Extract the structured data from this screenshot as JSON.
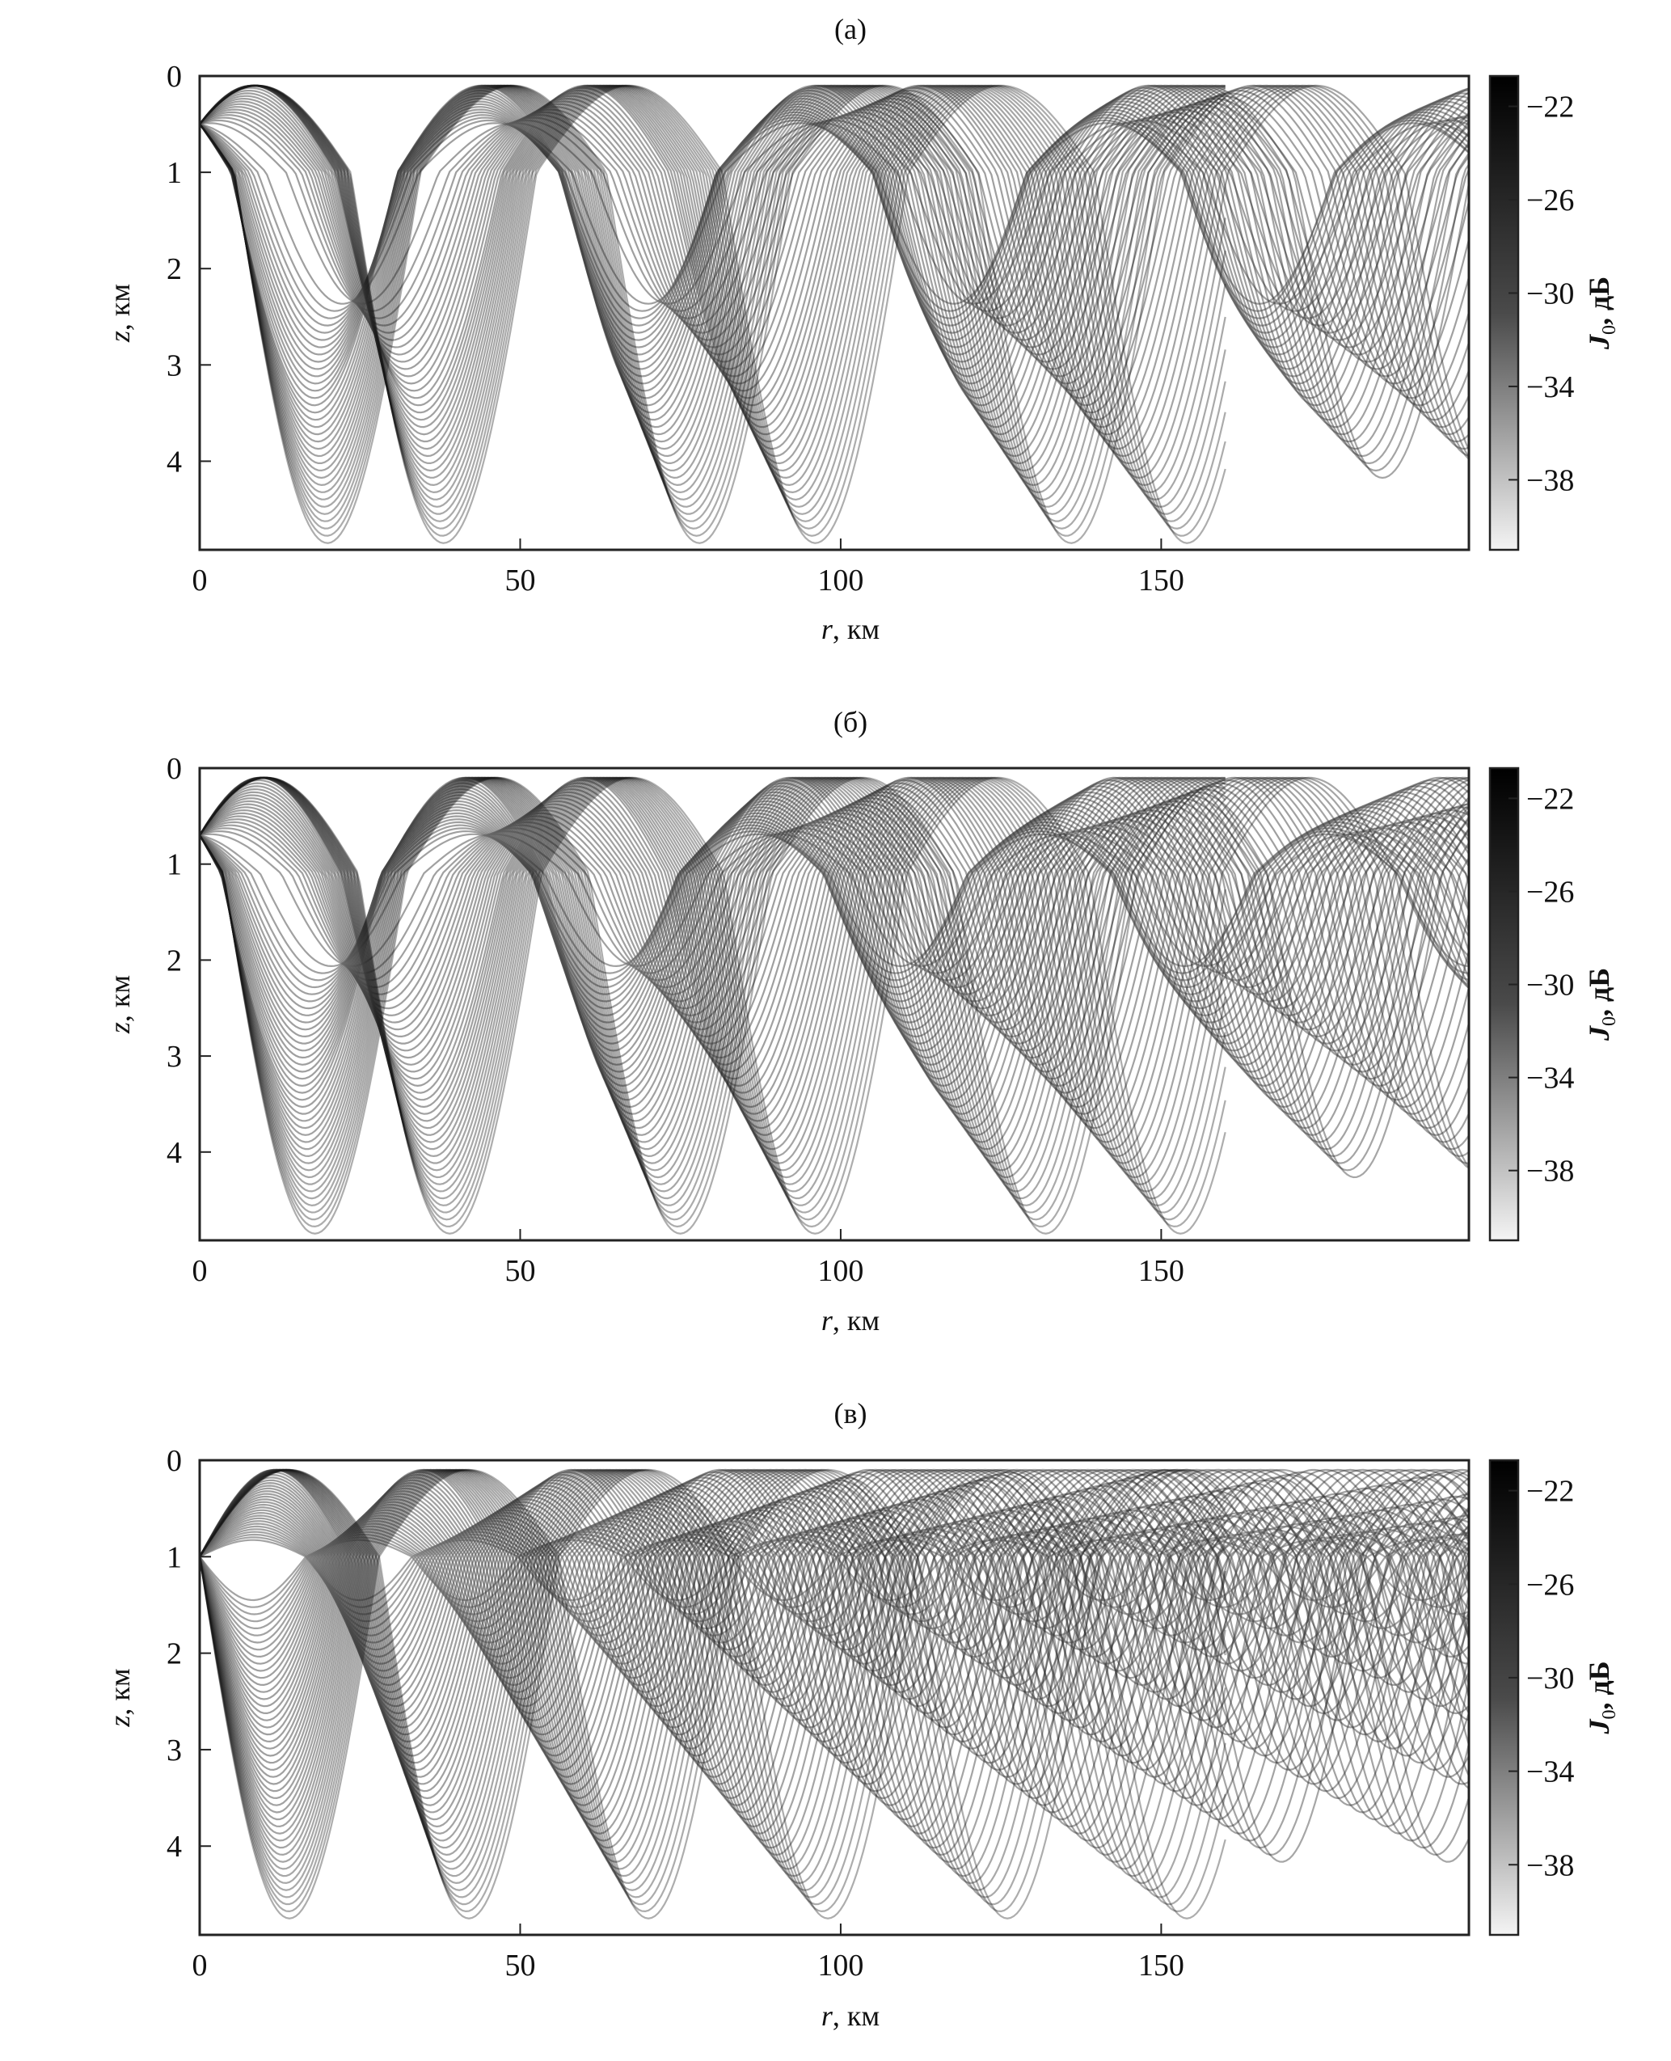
{
  "chart_data": [
    {
      "type": "heatmap",
      "title": "(а)",
      "xlabel_var": "r",
      "xlabel_unit": ", км",
      "ylabel_var": "z",
      "ylabel_unit": ", км",
      "xlim": [
        0,
        198
      ],
      "ylim": [
        0,
        4.92
      ],
      "xticks": [
        0,
        50,
        100,
        150
      ],
      "yticks": [
        0,
        1,
        2,
        3,
        4
      ],
      "colorbar": {
        "label_var": "J",
        "label_sub": "0",
        "label_unit": ", дБ",
        "range": [
          -41,
          -20.7
        ],
        "ticks": [
          -22,
          -26,
          -30,
          -34,
          -38
        ]
      },
      "ray_model": {
        "source_depth": 0.5,
        "axis_depth": 1.0,
        "period_min": 42,
        "period_max": 58,
        "max_lower_excursion": 3.85,
        "max_upper_excursion": 0.9
      }
    },
    {
      "type": "heatmap",
      "title": "(б)",
      "xlabel_var": "r",
      "xlabel_unit": ", км",
      "ylabel_var": "z",
      "ylabel_unit": ", км",
      "xlim": [
        0,
        198
      ],
      "ylim": [
        0,
        4.92
      ],
      "xticks": [
        0,
        50,
        100,
        150
      ],
      "yticks": [
        0,
        1,
        2,
        3,
        4
      ],
      "colorbar": {
        "label_var": "J",
        "label_sub": "0",
        "label_unit": ", дБ",
        "range": [
          -41,
          -20.7
        ],
        "ticks": [
          -22,
          -26,
          -30,
          -34,
          -38
        ]
      },
      "ray_model": {
        "source_depth": 0.7,
        "axis_depth": 1.1,
        "period_min": 40,
        "period_max": 57,
        "max_lower_excursion": 3.75,
        "max_upper_excursion": 1.0
      }
    },
    {
      "type": "heatmap",
      "title": "(в)",
      "xlabel_var": "r",
      "xlabel_unit": ", км",
      "ylabel_var": "z",
      "ylabel_unit": ", км",
      "xlim": [
        0,
        198
      ],
      "ylim": [
        0,
        4.92
      ],
      "xticks": [
        0,
        50,
        100,
        150
      ],
      "yticks": [
        0,
        1,
        2,
        3,
        4
      ],
      "colorbar": {
        "label_var": "J",
        "label_sub": "0",
        "label_unit": ", дБ",
        "range": [
          -41,
          -20.7
        ],
        "ticks": [
          -22,
          -26,
          -30,
          -34,
          -38
        ]
      },
      "ray_model": {
        "source_depth": 1.0,
        "axis_depth": 1.0,
        "period_min": 30,
        "period_max": 56,
        "max_lower_excursion": 3.75,
        "max_upper_excursion": 0.9
      }
    }
  ]
}
